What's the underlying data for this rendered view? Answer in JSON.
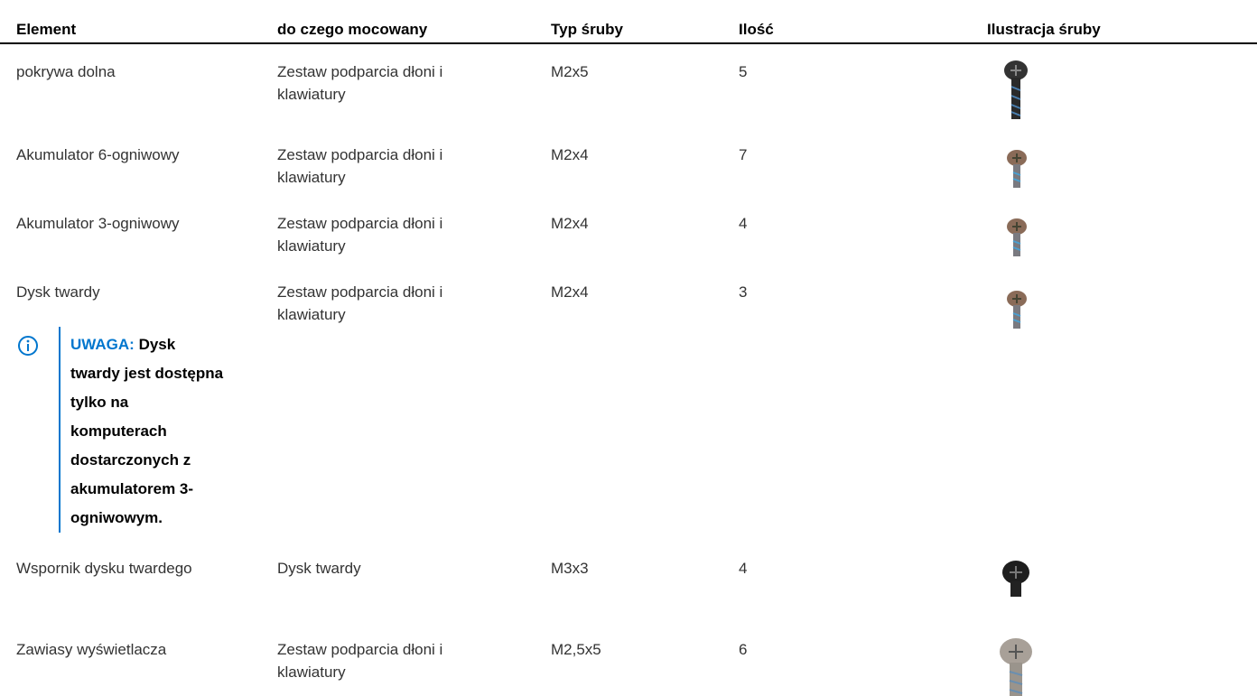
{
  "table": {
    "headers": [
      "Element",
      "do czego mocowany",
      "Typ śruby",
      "Ilość",
      "Ilustracja śruby"
    ],
    "rows": [
      [
        "pokrywa dolna",
        "Zestaw podparcia dłoni i klawiatury",
        "M2x5",
        5
      ],
      [
        "Akumulator 6-ogniwowy",
        "Zestaw podparcia dłoni i klawiatury",
        "M2x4",
        7
      ],
      [
        "Akumulator 3-ogniwowy",
        "Zestaw podparcia dłoni i klawiatury",
        "M2x4",
        4
      ],
      [
        "Dysk twardy",
        "Zestaw podparcia dłoni i klawiatury",
        "M2x4",
        3
      ],
      [
        "Wspornik dysku twardego",
        "Dysk twardy",
        "M3x3",
        4
      ],
      [
        "Zawiasy wyświetlacza",
        "Zestaw podparcia dłoni i klawiatury",
        "M2,5x5",
        6
      ]
    ],
    "note": {
      "label": "UWAGA:",
      "text": "Dysk twardy jest dostępna tylko na komputerach dostarczonych z akumulatorem 3-ogniwowym."
    }
  }
}
